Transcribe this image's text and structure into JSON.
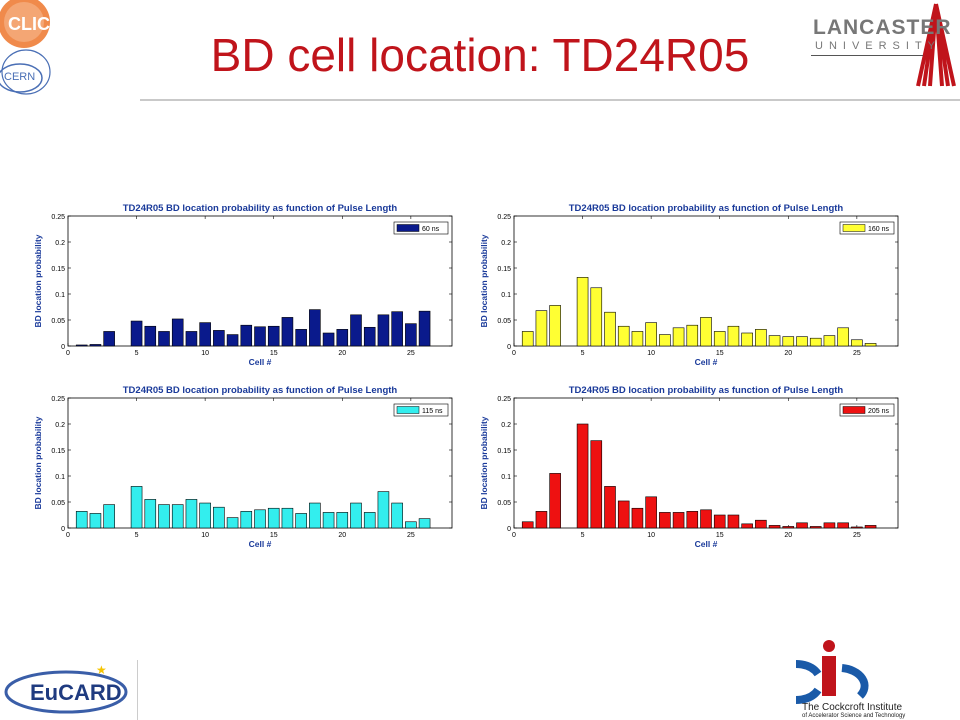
{
  "slide": {
    "title": "BD cell location: TD24R05",
    "logos": {
      "clic_text": "CLIC",
      "cern_text": "CERN",
      "lancaster_name": "LANCASTER",
      "lancaster_sub": "UNIVERSITY",
      "eucard_text": "EuCARD",
      "cockcroft_text": "The Cockcroft Institute",
      "cockcroft_sub": "of Accelerator Science and Technology"
    }
  },
  "chart_data": [
    {
      "type": "bar",
      "title": "TD24R05 BD location probability as function of Pulse Length",
      "xlabel": "Cell #",
      "ylabel": "BD location probability",
      "legend": "60 ns",
      "legend_position": "top-right",
      "color": "#0a1a8c",
      "xlim": [
        0,
        28
      ],
      "ylim": [
        0,
        0.25
      ],
      "xticks": [
        0,
        5,
        10,
        15,
        20,
        25
      ],
      "yticks": [
        0,
        0.05,
        0.1,
        0.15,
        0.2,
        0.25
      ],
      "ytick_labels": [
        "0",
        "0.05",
        "0.1",
        "0.15",
        "0.2",
        "0.25"
      ],
      "x": [
        1,
        2,
        3,
        4,
        5,
        6,
        7,
        8,
        9,
        10,
        11,
        12,
        13,
        14,
        15,
        16,
        17,
        18,
        19,
        20,
        21,
        22,
        23,
        24,
        25,
        26
      ],
      "values": [
        0.002,
        0.003,
        0.028,
        0,
        0.048,
        0.038,
        0.028,
        0.052,
        0.028,
        0.045,
        0.03,
        0.022,
        0.04,
        0.037,
        0.038,
        0.055,
        0.032,
        0.07,
        0.025,
        0.032,
        0.06,
        0.036,
        0.06,
        0.066,
        0.043,
        0.067
      ]
    },
    {
      "type": "bar",
      "title": "TD24R05 BD location probability as function of Pulse Length",
      "xlabel": "Cell #",
      "ylabel": "BD location probability",
      "legend": "160 ns",
      "legend_position": "top-right",
      "color": "#ffff33",
      "xlim": [
        0,
        28
      ],
      "ylim": [
        0,
        0.25
      ],
      "xticks": [
        0,
        5,
        10,
        15,
        20,
        25
      ],
      "yticks": [
        0,
        0.05,
        0.1,
        0.15,
        0.2,
        0.25
      ],
      "ytick_labels": [
        "0",
        "0.05",
        "0.1",
        "0.15",
        "0.2",
        "0.25"
      ],
      "x": [
        1,
        2,
        3,
        4,
        5,
        6,
        7,
        8,
        9,
        10,
        11,
        12,
        13,
        14,
        15,
        16,
        17,
        18,
        19,
        20,
        21,
        22,
        23,
        24,
        25,
        26
      ],
      "values": [
        0.028,
        0.068,
        0.078,
        0,
        0.132,
        0.112,
        0.065,
        0.038,
        0.028,
        0.045,
        0.022,
        0.035,
        0.04,
        0.055,
        0.028,
        0.038,
        0.025,
        0.032,
        0.02,
        0.018,
        0.018,
        0.015,
        0.02,
        0.035,
        0.012,
        0.005
      ]
    },
    {
      "type": "bar",
      "title": "TD24R05 BD location probability as function of Pulse Length",
      "xlabel": "Cell #",
      "ylabel": "BD location probability",
      "legend": "115 ns",
      "legend_position": "top-right",
      "color": "#33eeee",
      "xlim": [
        0,
        28
      ],
      "ylim": [
        0,
        0.25
      ],
      "xticks": [
        0,
        5,
        10,
        15,
        20,
        25
      ],
      "yticks": [
        0,
        0.05,
        0.1,
        0.15,
        0.2,
        0.25
      ],
      "ytick_labels": [
        "0",
        "0.05",
        "0.1",
        "0.15",
        "0.2",
        "0.25"
      ],
      "x": [
        1,
        2,
        3,
        4,
        5,
        6,
        7,
        8,
        9,
        10,
        11,
        12,
        13,
        14,
        15,
        16,
        17,
        18,
        19,
        20,
        21,
        22,
        23,
        24,
        25,
        26
      ],
      "values": [
        0.032,
        0.028,
        0.045,
        0,
        0.08,
        0.055,
        0.045,
        0.045,
        0.055,
        0.048,
        0.04,
        0.02,
        0.032,
        0.035,
        0.038,
        0.038,
        0.028,
        0.048,
        0.03,
        0.03,
        0.048,
        0.03,
        0.07,
        0.048,
        0.012,
        0.018
      ]
    },
    {
      "type": "bar",
      "title": "TD24R05 BD location probability as function of Pulse Length",
      "xlabel": "Cell #",
      "ylabel": "BD location probability",
      "legend": "205 ns",
      "legend_position": "top-right",
      "color": "#ee1111",
      "xlim": [
        0,
        28
      ],
      "ylim": [
        0,
        0.25
      ],
      "xticks": [
        0,
        5,
        10,
        15,
        20,
        25
      ],
      "yticks": [
        0,
        0.05,
        0.1,
        0.15,
        0.2,
        0.25
      ],
      "ytick_labels": [
        "0",
        "0.05",
        "0.1",
        "0.15",
        "0.2",
        "0.25"
      ],
      "x": [
        1,
        2,
        3,
        4,
        5,
        6,
        7,
        8,
        9,
        10,
        11,
        12,
        13,
        14,
        15,
        16,
        17,
        18,
        19,
        20,
        21,
        22,
        23,
        24,
        25,
        26
      ],
      "values": [
        0.012,
        0.032,
        0.105,
        0,
        0.2,
        0.168,
        0.08,
        0.052,
        0.038,
        0.06,
        0.03,
        0.03,
        0.032,
        0.035,
        0.025,
        0.025,
        0.008,
        0.015,
        0.005,
        0.003,
        0.01,
        0.003,
        0.01,
        0.01,
        0.002,
        0.005
      ]
    }
  ]
}
